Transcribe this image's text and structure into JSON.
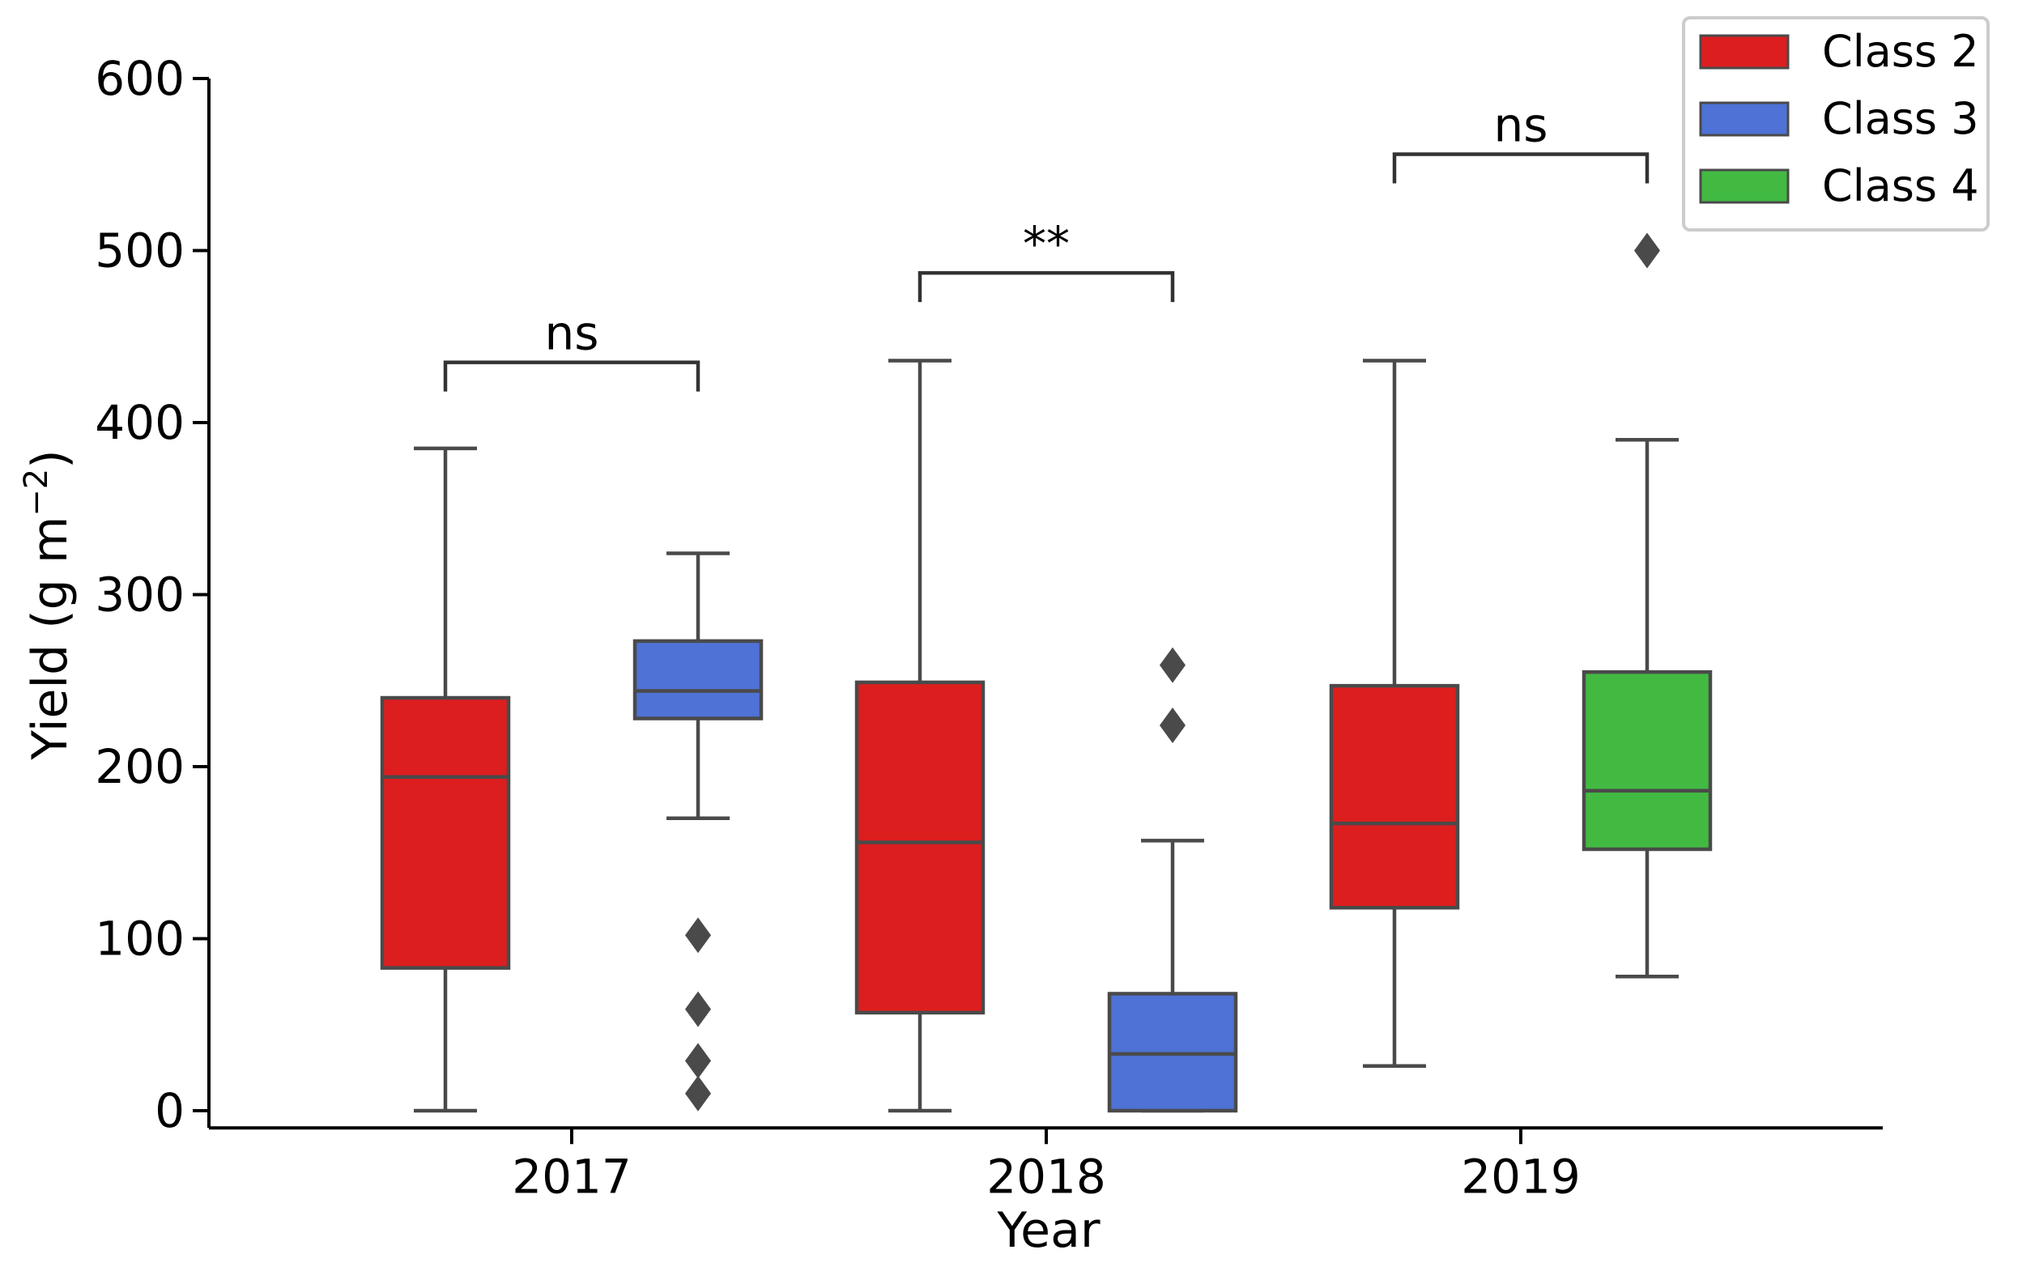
{
  "chart_data": {
    "type": "box",
    "xlabel": "Year",
    "ylabel": "Yield (g m",
    "ylabel_exponent": "−2",
    "ylabel_close": ")",
    "ylim": [
      -10,
      600
    ],
    "yticks": [
      0,
      100,
      200,
      300,
      400,
      500,
      600
    ],
    "categories": [
      "2017",
      "2018",
      "2019"
    ],
    "legend": {
      "position": "top-right",
      "entries": [
        {
          "label": "Class 2",
          "color": "#dd1e1f"
        },
        {
          "label": "Class 3",
          "color": "#4e72d5"
        },
        {
          "label": "Class 4",
          "color": "#42ba42"
        }
      ]
    },
    "boxes": [
      {
        "category": "2017",
        "series": "Class 2",
        "slot": "left",
        "color": "#dd1e1f",
        "whisker_low": 0,
        "q1": 83,
        "median": 194,
        "q3": 240,
        "whisker_high": 385,
        "outliers": []
      },
      {
        "category": "2017",
        "series": "Class 3",
        "slot": "right",
        "color": "#4e72d5",
        "whisker_low": 170,
        "q1": 228,
        "median": 244,
        "q3": 273,
        "whisker_high": 324,
        "outliers": [
          102,
          59,
          29,
          10
        ]
      },
      {
        "category": "2018",
        "series": "Class 2",
        "slot": "left",
        "color": "#dd1e1f",
        "whisker_low": 0,
        "q1": 57,
        "median": 156,
        "q3": 249,
        "whisker_high": 436,
        "outliers": []
      },
      {
        "category": "2018",
        "series": "Class 3",
        "slot": "right",
        "color": "#4e72d5",
        "whisker_low": 0,
        "q1": 0,
        "median": 33,
        "q3": 68,
        "whisker_high": 157,
        "outliers": [
          259,
          224
        ]
      },
      {
        "category": "2019",
        "series": "Class 2",
        "slot": "left",
        "color": "#dd1e1f",
        "whisker_low": 26,
        "q1": 118,
        "median": 167,
        "q3": 247,
        "whisker_high": 436,
        "outliers": []
      },
      {
        "category": "2019",
        "series": "Class 4",
        "slot": "right",
        "color": "#42ba42",
        "whisker_low": 78,
        "q1": 152,
        "median": 186,
        "q3": 255,
        "whisker_high": 390,
        "outliers": [
          500
        ]
      }
    ],
    "annotations": [
      {
        "category": "2017",
        "label": "ns",
        "level": 435
      },
      {
        "category": "2018",
        "label": "**",
        "level": 487
      },
      {
        "category": "2019",
        "label": "ns",
        "level": 556
      }
    ]
  }
}
